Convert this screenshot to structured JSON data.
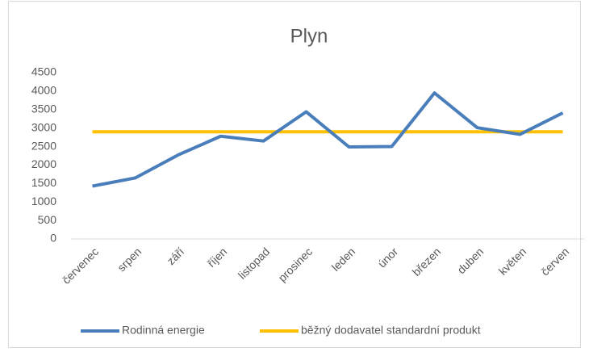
{
  "chart_data": {
    "type": "line",
    "title": "Plyn",
    "categories": [
      "červenec",
      "srpen",
      "září",
      "říjen",
      "listopad",
      "prosinec",
      "leden",
      "únor",
      "březen",
      "duben",
      "květen",
      "červen"
    ],
    "series": [
      {
        "name": "Rodinná energie",
        "color": "#4a7ebb",
        "values": [
          1430,
          1650,
          2270,
          2780,
          2650,
          3440,
          2490,
          2500,
          3950,
          3010,
          2830,
          3410
        ]
      },
      {
        "name": "běžný dodavatel standardní produkt",
        "color": "#ffc000",
        "values": [
          2900,
          2900,
          2900,
          2900,
          2900,
          2900,
          2900,
          2900,
          2900,
          2900,
          2900,
          2900
        ]
      }
    ],
    "ylim": [
      0,
      4500
    ],
    "yticks": [
      0,
      500,
      1000,
      1500,
      2000,
      2500,
      3000,
      3500,
      4000,
      4500
    ],
    "grid": false,
    "legend": "bottom"
  }
}
